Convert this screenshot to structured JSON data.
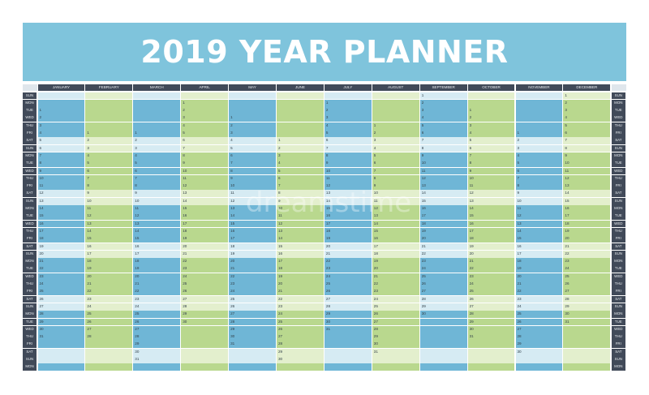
{
  "planner": {
    "title": "2019 YEAR PLANNER",
    "year": 2019,
    "months": [
      "JANUARY",
      "FEBRUARY",
      "MARCH",
      "APRIL",
      "MAY",
      "JUNE",
      "JULY",
      "AUGUST",
      "SEPTEMBER",
      "OCTOBER",
      "NOVEMBER",
      "DECEMBER"
    ],
    "weekdays": [
      "SUN",
      "MON",
      "TUE",
      "WED",
      "THU",
      "FRI",
      "SAT"
    ],
    "row_count": 37,
    "colors": {
      "banner": "#7fc4dc",
      "header": "#414a59",
      "blue": "#6fb6d6",
      "green": "#b9d88e",
      "light_blue": "#d6ebf3",
      "light_green": "#e3efcd"
    }
  },
  "watermark": "dreamstime"
}
